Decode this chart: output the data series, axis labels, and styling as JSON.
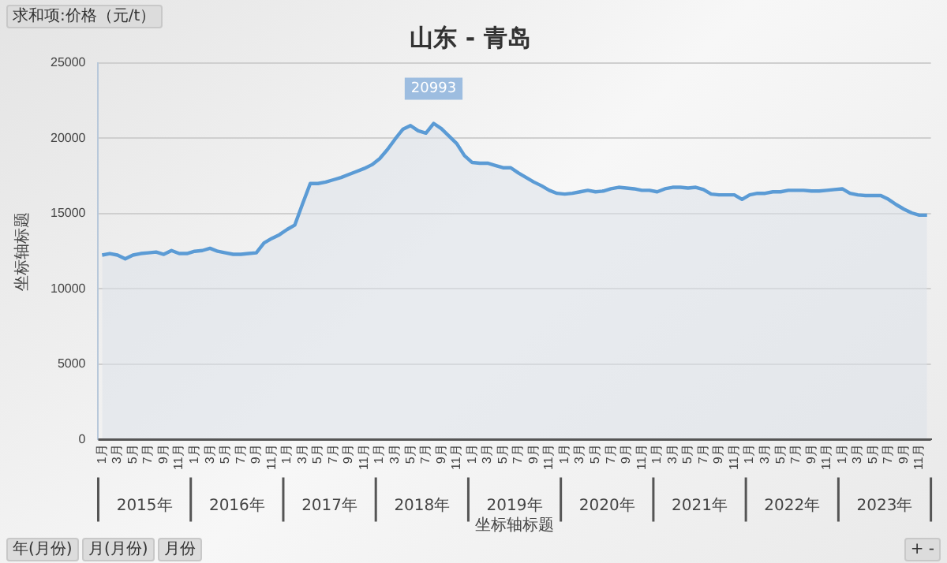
{
  "chart_data": {
    "type": "area",
    "title": "山东 - 青岛",
    "xlabel": "坐标轴标题",
    "ylabel": "坐标轴标题",
    "categories": [
      "1月",
      null,
      "3月",
      null,
      "5月",
      null,
      "7月",
      null,
      "9月",
      null,
      "11月",
      null,
      "1月",
      null,
      "3月",
      null,
      "5月",
      null,
      "7月",
      null,
      "9月",
      null,
      "11月",
      null,
      "1月",
      null,
      "3月",
      null,
      "5月",
      null,
      "7月",
      null,
      "9月",
      null,
      "11月",
      null,
      "1月",
      null,
      "3月",
      null,
      "5月",
      null,
      "7月",
      null,
      "9月",
      null,
      "11月",
      null,
      "1月",
      null,
      "3月",
      null,
      "5月",
      null,
      "7月",
      null,
      "9月",
      null,
      "11月",
      null,
      "1月",
      null,
      "3月",
      null,
      "5月",
      null,
      "7月",
      null,
      "9月",
      null,
      "11月",
      null,
      "1月",
      null,
      "3月",
      null,
      "5月",
      null,
      "7月",
      null,
      "9月",
      null,
      "11月",
      null,
      "1月",
      null,
      "3月",
      null,
      "5月",
      null,
      "7月",
      null,
      "9月",
      null,
      "11月",
      null,
      "1月",
      null,
      "3月",
      null,
      "5月",
      null,
      "7月",
      null,
      "9月",
      null,
      "11月",
      null
    ],
    "series": [
      {
        "color": "#5b9bd5",
        "values": [
          12250,
          12350,
          12250,
          12000,
          12250,
          12350,
          12400,
          12450,
          12300,
          12550,
          12350,
          12350,
          12500,
          12550,
          12700,
          12500,
          12400,
          12300,
          12300,
          12350,
          12400,
          13050,
          13350,
          13600,
          13950,
          14250,
          15650,
          17000,
          17000,
          17100,
          17250,
          17400,
          17600,
          17800,
          18000,
          18250,
          18650,
          19250,
          19950,
          20600,
          20850,
          20500,
          20350,
          20993,
          20650,
          20150,
          19650,
          18850,
          18400,
          18350,
          18350,
          18200,
          18050,
          18050,
          17700,
          17400,
          17100,
          16850,
          16550,
          16350,
          16300,
          16350,
          16450,
          16550,
          16450,
          16500,
          16650,
          16750,
          16700,
          16650,
          16550,
          16550,
          16450,
          16650,
          16750,
          16750,
          16700,
          16750,
          16600,
          16300,
          16250,
          16250,
          16250,
          15950,
          16250,
          16350,
          16350,
          16450,
          16450,
          16550,
          16550,
          16550,
          16500,
          16500,
          16550,
          16600,
          16650,
          16350,
          16250,
          16200,
          16200,
          16200,
          15950,
          15600,
          15300,
          15050,
          14900,
          14900
        ],
        "value_labels": [
          null,
          null,
          null,
          null,
          null,
          null,
          null,
          null,
          null,
          null,
          null,
          null,
          null,
          null,
          null,
          null,
          null,
          null,
          null,
          null,
          null,
          null,
          null,
          null,
          null,
          null,
          null,
          null,
          null,
          null,
          null,
          null,
          null,
          null,
          null,
          null,
          null,
          null,
          null,
          null,
          null,
          null,
          null,
          "20993",
          null,
          null,
          null,
          null,
          null,
          null,
          null,
          null,
          null,
          null,
          null,
          null,
          null,
          null,
          null,
          null,
          null,
          null,
          null,
          null,
          null,
          null,
          null,
          null,
          null,
          null,
          null,
          null,
          null,
          null,
          null,
          null,
          null,
          null,
          null,
          null,
          null,
          null,
          null,
          null,
          null,
          null,
          null,
          null,
          null,
          null,
          null,
          null,
          null,
          null,
          null,
          null,
          null,
          null,
          null,
          null,
          null,
          null,
          null,
          null,
          null,
          null,
          null,
          null
        ]
      }
    ],
    "ylim": [
      0,
      25000
    ],
    "yticks": [
      0,
      5000,
      10000,
      15000,
      20000,
      25000
    ],
    "grid": "y",
    "legend": false,
    "marker": "none",
    "annotations": [
      "求和项:价格（元/t）",
      "年(月份)",
      "月(月份)",
      "月份",
      "+ -",
      "2015年",
      "2016年",
      "2017年",
      "2018年",
      "2019年",
      "2020年",
      "2021年",
      "2022年",
      "2023年"
    ]
  }
}
